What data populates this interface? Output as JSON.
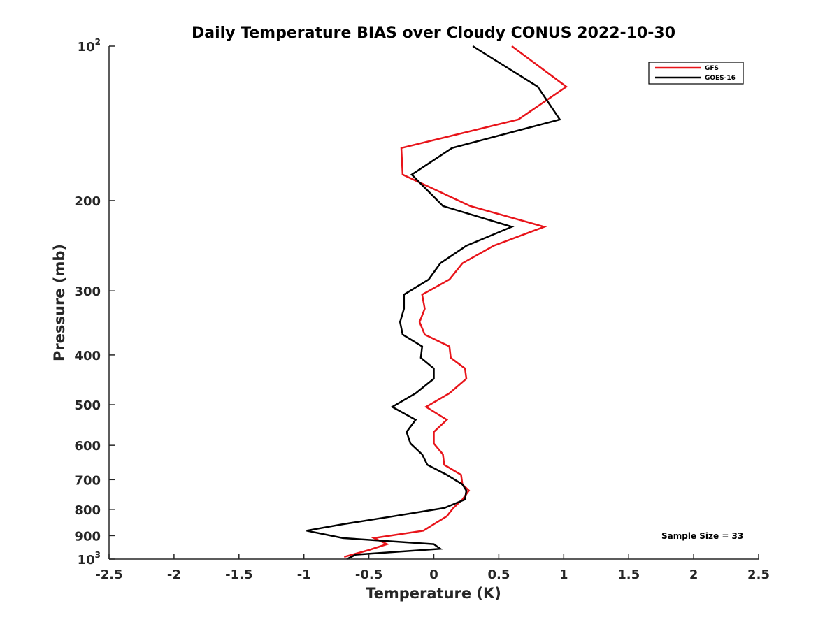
{
  "chart_data": {
    "type": "line",
    "title": "Daily Temperature BIAS over Cloudy CONUS 2022-10-30",
    "xlabel": "Temperature (K)",
    "ylabel": "Pressure (mb)",
    "xlim": [
      -2.5,
      2.5
    ],
    "ylim": [
      100,
      1000
    ],
    "y_scale": "log",
    "y_reversed": true,
    "grid": false,
    "x_ticks": [
      "-2.5",
      "-2",
      "-1.5",
      "-1",
      "-0.5",
      "0",
      "0.5",
      "1",
      "1.5",
      "2",
      "2.5"
    ],
    "y_ticks": [
      {
        "value": 100,
        "base": "10",
        "exp": "2"
      },
      {
        "value": 200,
        "label": "200"
      },
      {
        "value": 300,
        "label": "300"
      },
      {
        "value": 400,
        "label": "400"
      },
      {
        "value": 500,
        "label": "500"
      },
      {
        "value": 600,
        "label": "600"
      },
      {
        "value": 700,
        "label": "700"
      },
      {
        "value": 800,
        "label": "800"
      },
      {
        "value": 900,
        "label": "900"
      },
      {
        "value": 1000,
        "base": "10",
        "exp": "3"
      }
    ],
    "legend_position": "top-right",
    "annotation": "Sample Size = 33",
    "series": [
      {
        "name": "GFS",
        "color": "#e8141a",
        "x": [
          0.6,
          1.02,
          0.65,
          -0.25,
          -0.24,
          0.28,
          0.85,
          0.46,
          0.22,
          0.12,
          -0.09,
          -0.07,
          -0.11,
          -0.07,
          0.12,
          0.13,
          0.24,
          0.25,
          0.12,
          -0.06,
          0.1,
          0.0,
          0.0,
          0.07,
          0.08,
          0.21,
          0.22,
          0.27,
          0.22,
          0.15,
          0.1,
          0.0,
          -0.08,
          -0.46,
          -0.36,
          -0.5,
          -0.69
        ],
        "y": [
          100,
          120,
          139,
          158,
          178,
          205,
          225,
          245,
          265,
          285,
          305,
          325,
          345,
          365,
          385,
          405,
          425,
          445,
          475,
          505,
          535,
          565,
          595,
          625,
          655,
          685,
          715,
          735,
          765,
          795,
          825,
          855,
          880,
          910,
          935,
          960,
          990
        ]
      },
      {
        "name": "GOES-16",
        "color": "#000000",
        "x": [
          0.3,
          0.8,
          0.97,
          0.14,
          -0.17,
          0.07,
          0.6,
          0.25,
          0.05,
          -0.04,
          -0.23,
          -0.23,
          -0.26,
          -0.24,
          -0.09,
          -0.1,
          0.0,
          0.0,
          -0.14,
          -0.32,
          -0.14,
          -0.21,
          -0.18,
          -0.09,
          -0.05,
          0.1,
          0.22,
          0.25,
          0.24,
          0.08,
          -0.31,
          -0.7,
          -0.98,
          -0.7,
          0.0,
          0.05,
          -0.6,
          -0.67
        ],
        "y": [
          100,
          120,
          139,
          158,
          178,
          205,
          225,
          245,
          265,
          285,
          305,
          325,
          345,
          365,
          385,
          405,
          425,
          445,
          475,
          505,
          535,
          565,
          595,
          625,
          655,
          685,
          715,
          735,
          765,
          795,
          825,
          855,
          880,
          910,
          935,
          955,
          980,
          1000
        ]
      }
    ]
  }
}
